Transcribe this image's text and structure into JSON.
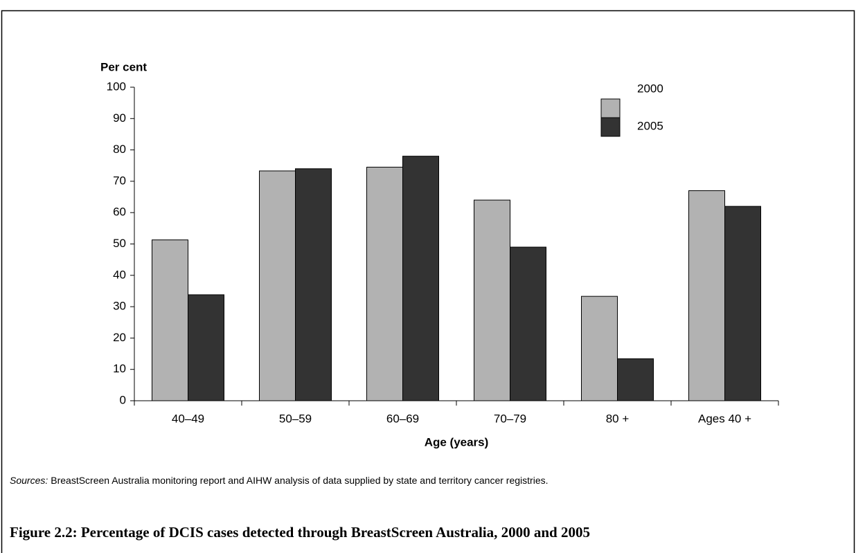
{
  "chart_data": {
    "type": "bar",
    "y_label": "Per cent",
    "x_label": "Age (years)",
    "categories": [
      "40–49",
      "50–59",
      "60–69",
      "70–79",
      "80 +",
      "Ages 40 +"
    ],
    "series": [
      {
        "name": "2000",
        "color": "#b2b2b2",
        "values": [
          51.3,
          73.3,
          74.5,
          64,
          33.3,
          67
        ]
      },
      {
        "name": "2005",
        "color": "#333333",
        "values": [
          33.8,
          74,
          78,
          49,
          13.4,
          62
        ]
      }
    ],
    "ylim": [
      0,
      100
    ],
    "yticks": [
      0,
      10,
      20,
      30,
      40,
      50,
      60,
      70,
      80,
      90,
      100
    ],
    "sources_label": "Sources:",
    "sources_text": "BreastScreen Australia monitoring report and AIHW analysis of data supplied by state and territory cancer registries.",
    "caption": "Figure 2.2: Percentage of DCIS cases detected through BreastScreen Australia, 2000 and 2005"
  }
}
